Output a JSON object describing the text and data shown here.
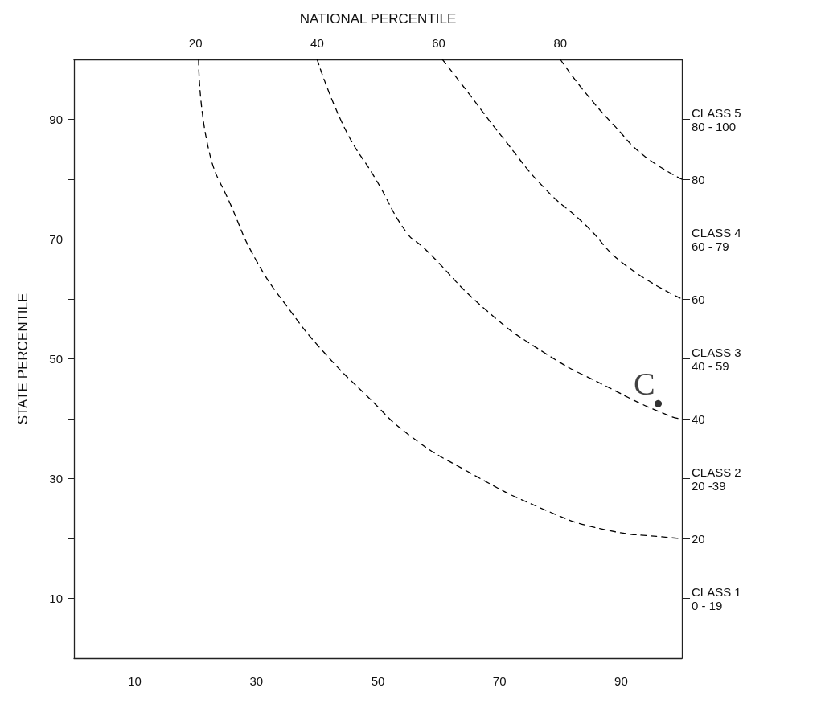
{
  "chart_data": {
    "type": "line",
    "x2label": "NATIONAL PERCENTILE",
    "ylabel": "STATE PERCENTILE",
    "xlim": [
      0,
      100
    ],
    "xticks": [
      10,
      30,
      50,
      70,
      90
    ],
    "x2lim": [
      0,
      100
    ],
    "x2ticks": [
      20,
      40,
      60,
      80
    ],
    "ylim": [
      0,
      100
    ],
    "yticks": [
      10,
      {
        "value": 20,
        "label": null
      },
      30,
      {
        "value": 40,
        "label": null
      },
      50,
      {
        "value": 60,
        "label": null
      },
      70,
      {
        "value": 80,
        "label": null
      },
      90
    ],
    "y2lim": [
      0,
      100
    ],
    "y2ticks": [
      {
        "value": 10,
        "label": "CLASS 1\n0 - 19"
      },
      20,
      {
        "value": 30,
        "label": "CLASS 2\n20 -39"
      },
      40,
      {
        "value": 50,
        "label": "CLASS 3\n40 - 59"
      },
      60,
      {
        "value": 70,
        "label": "CLASS 4\n60 - 79"
      },
      80,
      {
        "value": 90,
        "label": "CLASS 5\n80 - 100"
      }
    ],
    "grid": false,
    "marker": "none",
    "line_style": "dashed",
    "series": [
      {
        "color": "#000000",
        "x": [
          20.5,
          22.1,
          26,
          30,
          35.3,
          41.2,
          48.4,
          55.1,
          64.2,
          77.4,
          87.2,
          98.4,
          100
        ],
        "values": [
          100,
          85.2,
          75.2,
          66.4,
          58.4,
          51,
          43.6,
          37.3,
          31.5,
          24.8,
          21.5,
          20.1,
          20
        ]
      },
      {
        "color": "#000000",
        "x": [
          40,
          44.5,
          49.7,
          54.7,
          57.6,
          67.5,
          77.4,
          87.2,
          98.4,
          100
        ],
        "values": [
          100,
          88.6,
          79.9,
          71.1,
          68.5,
          58.4,
          51,
          45.6,
          40.3,
          40
        ]
      },
      {
        "color": "#000000",
        "x": [
          60.6,
          64.2,
          70.8,
          77.4,
          84,
          90.5,
          100
        ],
        "values": [
          100,
          95.3,
          86.6,
          78.5,
          72.5,
          65.8,
          60
        ]
      },
      {
        "color": "#000000",
        "x": [
          80,
          84,
          89.2,
          93.8,
          100
        ],
        "values": [
          100,
          94.6,
          88.6,
          83.9,
          80
        ]
      },
      {
        "type": "scatter",
        "marker": "circle",
        "color": "#000000",
        "x": [
          96.1
        ],
        "values": [
          42.5
        ]
      }
    ],
    "annotations": [
      {
        "text": "C",
        "x": 96.1,
        "y": 42.5
      }
    ]
  }
}
